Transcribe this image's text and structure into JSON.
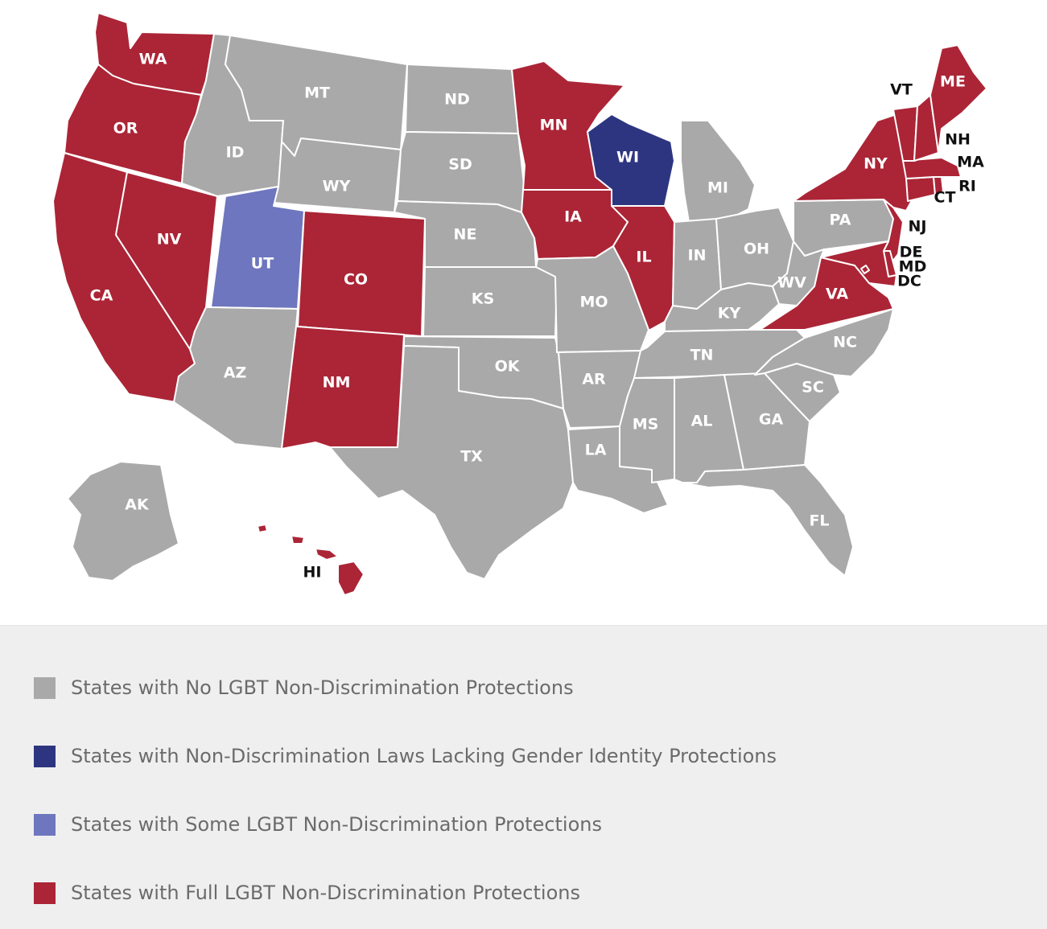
{
  "colors": {
    "none": "#a9a9a9",
    "lacking_gender_identity": "#2e3580",
    "some": "#6e76bf",
    "full": "#ab2536",
    "border": "#ffffff"
  },
  "map": {
    "states": [
      {
        "abbr": "WA",
        "category": "full"
      },
      {
        "abbr": "OR",
        "category": "full"
      },
      {
        "abbr": "CA",
        "category": "full"
      },
      {
        "abbr": "NV",
        "category": "full"
      },
      {
        "abbr": "ID",
        "category": "none"
      },
      {
        "abbr": "MT",
        "category": "none"
      },
      {
        "abbr": "WY",
        "category": "none"
      },
      {
        "abbr": "UT",
        "category": "some"
      },
      {
        "abbr": "CO",
        "category": "full"
      },
      {
        "abbr": "AZ",
        "category": "none"
      },
      {
        "abbr": "NM",
        "category": "full"
      },
      {
        "abbr": "ND",
        "category": "none"
      },
      {
        "abbr": "SD",
        "category": "none"
      },
      {
        "abbr": "NE",
        "category": "none"
      },
      {
        "abbr": "KS",
        "category": "none"
      },
      {
        "abbr": "OK",
        "category": "none"
      },
      {
        "abbr": "TX",
        "category": "none"
      },
      {
        "abbr": "MN",
        "category": "full"
      },
      {
        "abbr": "IA",
        "category": "full"
      },
      {
        "abbr": "MO",
        "category": "none"
      },
      {
        "abbr": "AR",
        "category": "none"
      },
      {
        "abbr": "LA",
        "category": "none"
      },
      {
        "abbr": "WI",
        "category": "lacking_gender_identity"
      },
      {
        "abbr": "IL",
        "category": "full"
      },
      {
        "abbr": "MI",
        "category": "none"
      },
      {
        "abbr": "IN",
        "category": "none"
      },
      {
        "abbr": "OH",
        "category": "none"
      },
      {
        "abbr": "KY",
        "category": "none"
      },
      {
        "abbr": "TN",
        "category": "none"
      },
      {
        "abbr": "MS",
        "category": "none"
      },
      {
        "abbr": "AL",
        "category": "none"
      },
      {
        "abbr": "GA",
        "category": "none"
      },
      {
        "abbr": "FL",
        "category": "none"
      },
      {
        "abbr": "SC",
        "category": "none"
      },
      {
        "abbr": "NC",
        "category": "none"
      },
      {
        "abbr": "VA",
        "category": "full"
      },
      {
        "abbr": "WV",
        "category": "none"
      },
      {
        "abbr": "PA",
        "category": "none"
      },
      {
        "abbr": "NY",
        "category": "full"
      },
      {
        "abbr": "NJ",
        "category": "full"
      },
      {
        "abbr": "DE",
        "category": "full"
      },
      {
        "abbr": "MD",
        "category": "full"
      },
      {
        "abbr": "DC",
        "category": "full"
      },
      {
        "abbr": "CT",
        "category": "full"
      },
      {
        "abbr": "RI",
        "category": "full"
      },
      {
        "abbr": "MA",
        "category": "full"
      },
      {
        "abbr": "VT",
        "category": "full"
      },
      {
        "abbr": "NH",
        "category": "full"
      },
      {
        "abbr": "ME",
        "category": "full"
      },
      {
        "abbr": "AK",
        "category": "none"
      },
      {
        "abbr": "HI",
        "category": "full"
      }
    ]
  },
  "legend": {
    "items": [
      {
        "key": "none",
        "label": "States with No LGBT Non-Discrimination Protections"
      },
      {
        "key": "lacking_gender_identity",
        "label": "States with Non-Discrimination Laws Lacking Gender Identity Protections"
      },
      {
        "key": "some",
        "label": "States with Some LGBT Non-Discrimination Protections"
      },
      {
        "key": "full",
        "label": "States with Full LGBT Non-Discrimination Protections"
      }
    ]
  }
}
